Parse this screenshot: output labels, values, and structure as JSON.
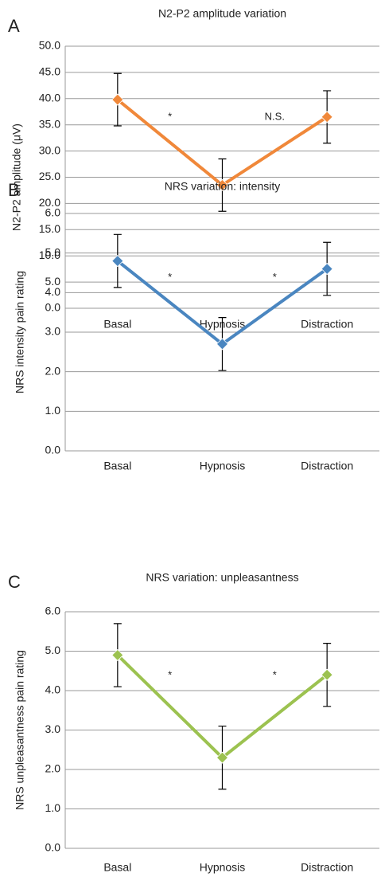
{
  "chart_data": [
    {
      "type": "line",
      "panel": "A",
      "title": "N2-P2 amplitude variation",
      "ylabel": "N2-P2 amplitude (μV)",
      "categories": [
        "Basal",
        "Hypnosis",
        "Distraction"
      ],
      "series": [
        {
          "color": "#f0883a",
          "values": [
            39.8,
            23.5,
            36.5
          ],
          "errors": [
            5,
            5,
            5
          ]
        }
      ],
      "ylim": [
        0,
        50
      ],
      "yticks": [
        {
          "value": 0,
          "label": "0.0"
        },
        {
          "value": 5,
          "label": "5.0"
        },
        {
          "value": 10,
          "label": "10.0"
        },
        {
          "value": 15,
          "label": "15.0"
        },
        {
          "value": 20,
          "label": "20.0"
        },
        {
          "value": 25,
          "label": "25.0"
        },
        {
          "value": 30,
          "label": "30.0"
        },
        {
          "value": 35,
          "label": "35.0"
        },
        {
          "value": 40,
          "label": "40.0"
        },
        {
          "value": 45,
          "label": "45.0"
        },
        {
          "value": 50,
          "label": "50.0"
        }
      ],
      "grid": true,
      "annotations": [
        "*",
        "N.S."
      ]
    },
    {
      "type": "line",
      "panel": "B",
      "title": "NRS variation: intensity",
      "ylabel": "NRS intensity pain rating",
      "categories": [
        "Basal",
        "Hypnosis",
        "Distraction"
      ],
      "series": [
        {
          "color": "#4a86c0",
          "values": [
            4.8,
            2.7,
            4.6
          ],
          "errors": [
            0.67,
            0.67,
            0.67
          ]
        }
      ],
      "ylim": [
        0,
        6
      ],
      "yticks": [
        {
          "value": 0,
          "label": "0.0"
        },
        {
          "value": 1,
          "label": "1.0"
        },
        {
          "value": 2,
          "label": "2.0"
        },
        {
          "value": 3,
          "label": "3.0"
        },
        {
          "value": 4,
          "label": "4.0"
        },
        {
          "value": 5,
          "label": "5.0"
        },
        {
          "value": 6,
          "label": "6.0"
        }
      ],
      "grid": true,
      "annotations": [
        "*",
        "*"
      ]
    },
    {
      "type": "line",
      "panel": "C",
      "title": "NRS variation: unpleasantness",
      "ylabel": "NRS unpleasantness pain rating",
      "categories": [
        "Basal",
        "Hypnosis",
        "Distraction"
      ],
      "series": [
        {
          "color": "#9cc250",
          "values": [
            4.9,
            2.3,
            4.4
          ],
          "errors": [
            0.8,
            0.8,
            0.8
          ]
        }
      ],
      "ylim": [
        0,
        6
      ],
      "yticks": [
        {
          "value": 0,
          "label": "0.0"
        },
        {
          "value": 1,
          "label": "1.0"
        },
        {
          "value": 2,
          "label": "2.0"
        },
        {
          "value": 3,
          "label": "3.0"
        },
        {
          "value": 4,
          "label": "4.0"
        },
        {
          "value": 5,
          "label": "5.0"
        },
        {
          "value": 6,
          "label": "6.0"
        }
      ],
      "grid": true,
      "annotations": [
        "*",
        "*"
      ]
    }
  ]
}
